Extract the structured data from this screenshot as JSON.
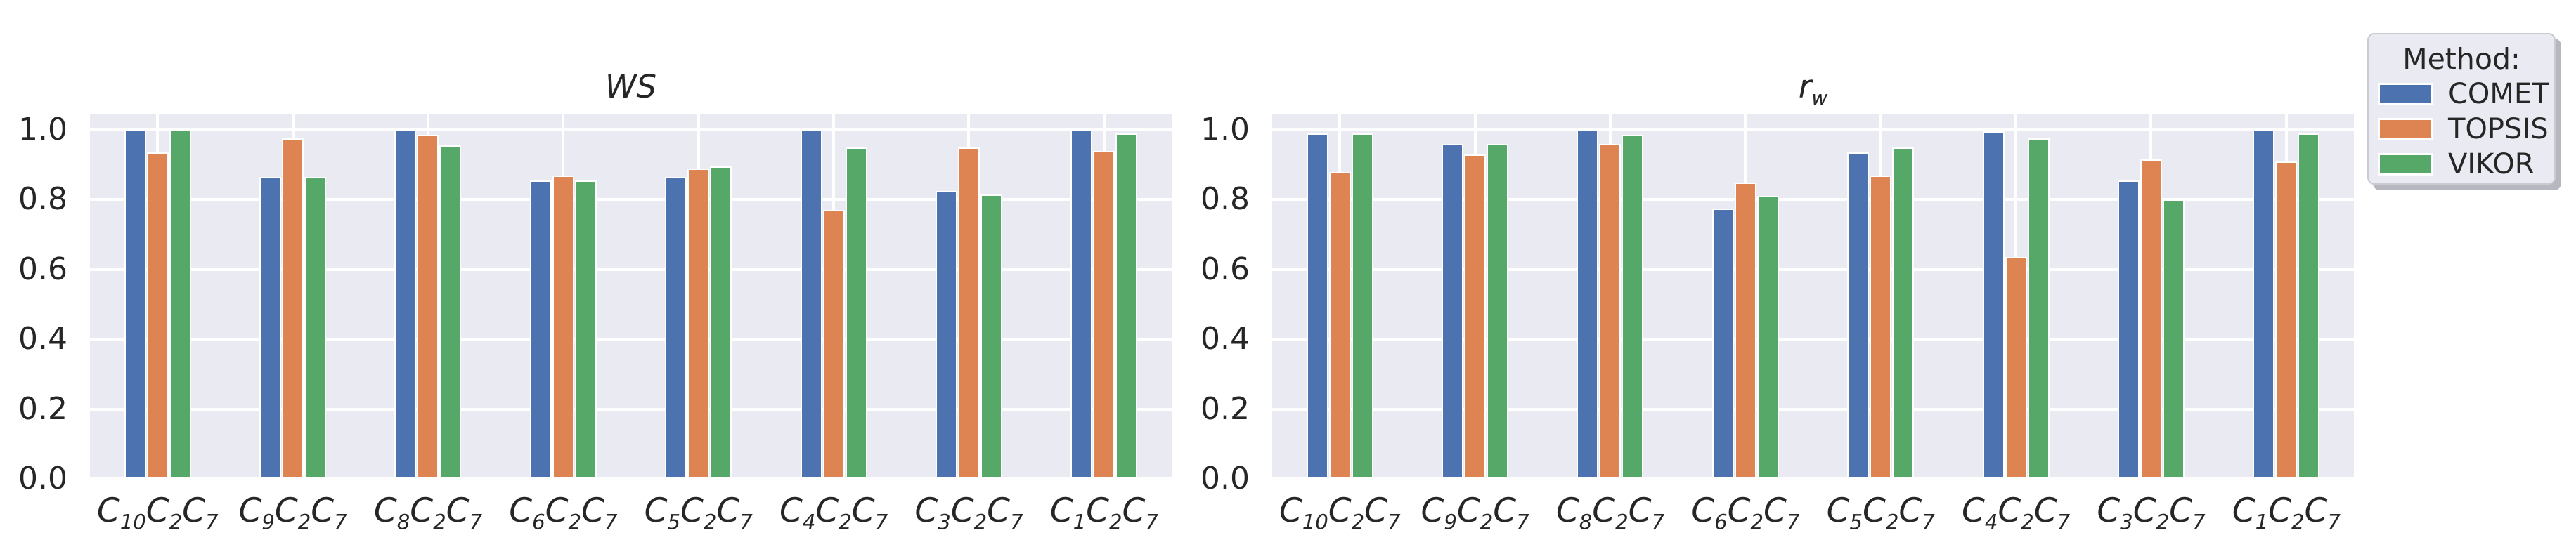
{
  "figure": {
    "background": "#ffffff",
    "text_color": "#262626",
    "axes_background": "#eaeaf2",
    "grid_color": "#ffffff"
  },
  "legend": {
    "title": "Method:",
    "entries": [
      {
        "label": "COMET",
        "color": "#4c72b0"
      },
      {
        "label": "TOPSIS",
        "color": "#dd8452"
      },
      {
        "label": "VIKOR",
        "color": "#55a868"
      }
    ]
  },
  "chart_data": [
    {
      "type": "bar",
      "title": "WS",
      "title_tex": "WS",
      "categories": [
        "C10C2C7",
        "C9C2C7",
        "C8C2C7",
        "C6C2C7",
        "C5C2C7",
        "C4C2C7",
        "C3C2C7",
        "C1C2C7"
      ],
      "categories_tex": [
        "C_{10}C_{2}C_{7}",
        "C_{9}C_{2}C_{7}",
        "C_{8}C_{2}C_{7}",
        "C_{6}C_{2}C_{7}",
        "C_{5}C_{2}C_{7}",
        "C_{4}C_{2}C_{7}",
        "C_{3}C_{2}C_{7}",
        "C_{1}C_{2}C_{7}"
      ],
      "series": [
        {
          "name": "COMET",
          "color": "#4c72b0",
          "values": [
            1.0,
            0.865,
            1.0,
            0.855,
            0.865,
            1.0,
            0.825,
            1.0
          ]
        },
        {
          "name": "TOPSIS",
          "color": "#dd8452",
          "values": [
            0.935,
            0.975,
            0.985,
            0.87,
            0.89,
            0.77,
            0.95,
            0.94
          ]
        },
        {
          "name": "VIKOR",
          "color": "#55a868",
          "values": [
            1.0,
            0.865,
            0.955,
            0.855,
            0.895,
            0.95,
            0.815,
            0.99
          ]
        }
      ],
      "xlabel": "",
      "ylabel": "",
      "yticks": [
        0.0,
        0.2,
        0.4,
        0.6,
        0.8,
        1.0
      ],
      "ylim": [
        0.0,
        1.044
      ],
      "grid": true,
      "legend_position": "outside upper right"
    },
    {
      "type": "bar",
      "title": "rw",
      "title_tex": "r_{w}",
      "categories": [
        "C10C2C7",
        "C9C2C7",
        "C8C2C7",
        "C6C2C7",
        "C5C2C7",
        "C4C2C7",
        "C3C2C7",
        "C1C2C7"
      ],
      "categories_tex": [
        "C_{10}C_{2}C_{7}",
        "C_{9}C_{2}C_{7}",
        "C_{8}C_{2}C_{7}",
        "C_{6}C_{2}C_{7}",
        "C_{5}C_{2}C_{7}",
        "C_{4}C_{2}C_{7}",
        "C_{3}C_{2}C_{7}",
        "C_{1}C_{2}C_{7}"
      ],
      "series": [
        {
          "name": "COMET",
          "color": "#4c72b0",
          "values": [
            0.99,
            0.96,
            1.0,
            0.775,
            0.935,
            0.995,
            0.855,
            1.0
          ]
        },
        {
          "name": "TOPSIS",
          "color": "#dd8452",
          "values": [
            0.88,
            0.93,
            0.96,
            0.85,
            0.87,
            0.635,
            0.915,
            0.91
          ]
        },
        {
          "name": "VIKOR",
          "color": "#55a868",
          "values": [
            0.99,
            0.96,
            0.985,
            0.81,
            0.95,
            0.975,
            0.8,
            0.99
          ]
        }
      ],
      "xlabel": "",
      "ylabel": "",
      "yticks": [
        0.0,
        0.2,
        0.4,
        0.6,
        0.8,
        1.0
      ],
      "ylim": [
        0.0,
        1.044
      ],
      "grid": true,
      "legend_position": "outside upper right"
    }
  ]
}
